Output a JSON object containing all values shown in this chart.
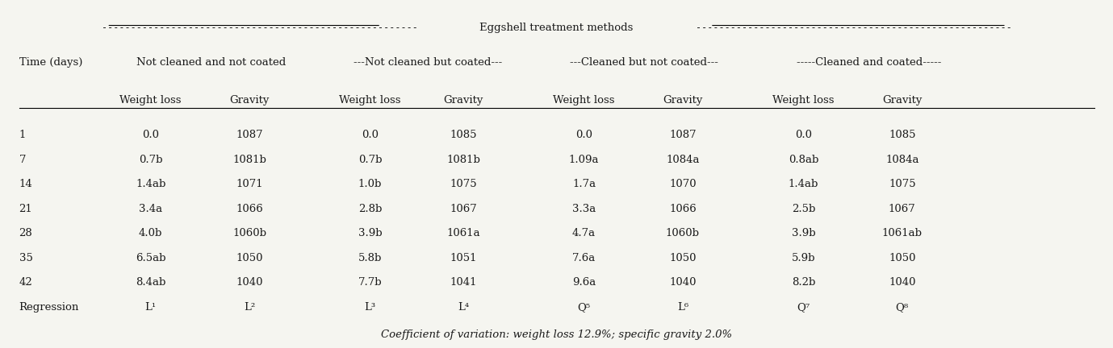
{
  "title_line": "Eggshell treatment methods",
  "col_header_row1": [
    "Time (days)",
    "Not cleaned and not coated",
    "",
    "---Not cleaned but coated---",
    "",
    "---Cleaned but not coated---",
    "",
    "-----Cleaned and coated-----",
    ""
  ],
  "col_header_row2": [
    "",
    "Weight loss",
    "Gravity",
    "Weight loss",
    "Gravity",
    "Weight loss",
    "Gravity",
    "Weight loss",
    "Gravity"
  ],
  "rows": [
    [
      "1",
      "0.0",
      "1087",
      "0.0",
      "1085",
      "0.0",
      "1087",
      "0.0",
      "1085"
    ],
    [
      "7",
      "0.7b",
      "1081b",
      "0.7b",
      "1081b",
      "1.09a",
      "1084a",
      "0.8ab",
      "1084a"
    ],
    [
      "14",
      "1.4ab",
      "1071",
      "1.0b",
      "1075",
      "1.7a",
      "1070",
      "1.4ab",
      "1075"
    ],
    [
      "21",
      "3.4a",
      "1066",
      "2.8b",
      "1067",
      "3.3a",
      "1066",
      "2.5b",
      "1067"
    ],
    [
      "28",
      "4.0b",
      "1060b",
      "3.9b",
      "1061a",
      "4.7a",
      "1060b",
      "3.9b",
      "1061ab"
    ],
    [
      "35",
      "6.5ab",
      "1050",
      "5.8b",
      "1051",
      "7.6a",
      "1050",
      "5.9b",
      "1050"
    ],
    [
      "42",
      "8.4ab",
      "1040",
      "7.7b",
      "1041",
      "9.6a",
      "1040",
      "8.2b",
      "1040"
    ],
    [
      "Regression",
      "L¹",
      "L²",
      "L³",
      "L⁴",
      "Q⁵",
      "L⁶",
      "Q⁷",
      "Q⁸"
    ]
  ],
  "footnote": "Coefficient of variation: weight loss 12.9%; specific gravity 2.0%",
  "bg_color": "#f5f5f0",
  "text_color": "#1a1a1a"
}
